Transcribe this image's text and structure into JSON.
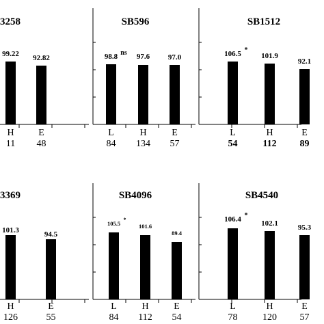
{
  "chart_data": [
    {
      "type": "bar",
      "title": "3258",
      "categories": [
        "",
        "H",
        "E"
      ],
      "values": [
        null,
        99.22,
        92.82
      ],
      "value_labels": [
        "",
        "99.22",
        "92.82"
      ],
      "significance": [
        "",
        "",
        ""
      ],
      "counts": [
        "",
        "11",
        "48"
      ]
    },
    {
      "type": "bar",
      "title": "SB596",
      "categories": [
        "L",
        "H",
        "E"
      ],
      "values": [
        98.8,
        97.6,
        97.0
      ],
      "value_labels": [
        "98.8",
        "97.6",
        "97.0"
      ],
      "significance": [
        "ns",
        "",
        ""
      ],
      "counts": [
        "84",
        "134",
        "57"
      ]
    },
    {
      "type": "bar",
      "title": "SB1512",
      "categories": [
        "L",
        "H",
        "E"
      ],
      "values": [
        106.5,
        101.9,
        92.1
      ],
      "value_labels": [
        "106.5",
        "101.9",
        "92.1"
      ],
      "significance": [
        "*",
        "",
        ""
      ],
      "counts": [
        "54",
        "112",
        "89"
      ]
    },
    {
      "type": "bar",
      "title": "3369",
      "categories": [
        "",
        "H",
        "E"
      ],
      "values": [
        null,
        101.3,
        94.5
      ],
      "value_labels": [
        "",
        "101.3",
        "94.5"
      ],
      "significance": [
        "",
        "",
        ""
      ],
      "counts": [
        "",
        "126",
        "55"
      ]
    },
    {
      "type": "bar",
      "title": "SB4096",
      "categories": [
        "L",
        "H",
        "E"
      ],
      "values": [
        105.5,
        101.6,
        89.4
      ],
      "value_labels": [
        "105.5",
        "101.6",
        "89.4"
      ],
      "significance": [
        "*",
        "",
        ""
      ],
      "counts": [
        "84",
        "112",
        "54"
      ]
    },
    {
      "type": "bar",
      "title": "SB4540",
      "categories": [
        "L",
        "H",
        "E"
      ],
      "values": [
        106.4,
        102.1,
        95.3
      ],
      "value_labels": [
        "106.4",
        "102.1",
        "95.3"
      ],
      "significance": [
        "*",
        "",
        ""
      ],
      "counts": [
        "78",
        "120",
        "57"
      ]
    }
  ]
}
